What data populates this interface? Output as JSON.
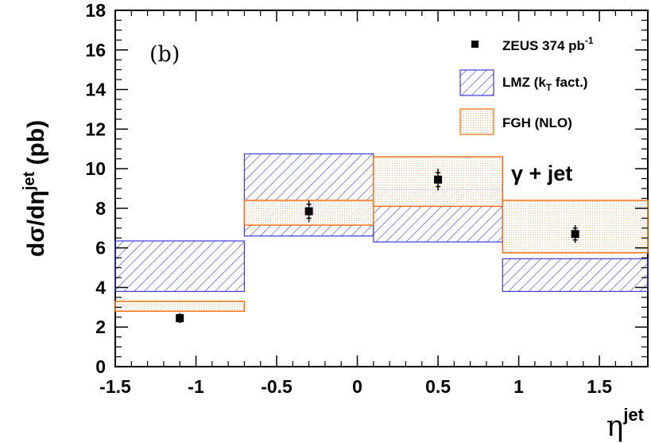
{
  "chart_data": {
    "type": "bar",
    "panel_label": "(b)",
    "annotation": "γ + jet",
    "xlabel": {
      "base": "η",
      "sup": "jet"
    },
    "ylabel": {
      "pre": "dσ/dη",
      "sup": "jet",
      "post": " (pb)"
    },
    "xlim": [
      -1.5,
      1.8
    ],
    "ylim": [
      0,
      18
    ],
    "x_ticks": [
      -1.5,
      -1,
      -0.5,
      0,
      0.5,
      1,
      1.5
    ],
    "x_tick_labels": [
      "-1.5",
      "-1",
      "-0.5",
      "0",
      "0.5",
      "1",
      "1.5"
    ],
    "y_ticks": [
      0,
      2,
      4,
      6,
      8,
      10,
      12,
      14,
      16,
      18
    ],
    "y_tick_labels": [
      "0",
      "2",
      "4",
      "6",
      "8",
      "10",
      "12",
      "14",
      "16",
      "18"
    ],
    "bins": [
      [
        -1.5,
        -0.7
      ],
      [
        -0.7,
        0.1
      ],
      [
        0.1,
        0.9
      ],
      [
        0.9,
        1.8
      ]
    ],
    "series": [
      {
        "name": "ZEUS 374 pb",
        "name_sup": "-1",
        "kind": "data_points",
        "x": [
          -1.1,
          -0.3,
          0.5,
          1.35
        ],
        "y": [
          2.45,
          7.85,
          9.45,
          6.7
        ],
        "stat_err": [
          0.18,
          0.35,
          0.35,
          0.3
        ],
        "total_err": [
          0.25,
          0.55,
          0.55,
          0.45
        ]
      },
      {
        "name": "LMZ (k",
        "name_sub": "T",
        "name_post": " fact.)",
        "kind": "band",
        "low": [
          3.8,
          6.6,
          6.3,
          3.8
        ],
        "high": [
          6.35,
          10.75,
          8.95,
          5.45
        ]
      },
      {
        "name": "FGH (NLO)",
        "kind": "band",
        "low": [
          2.8,
          7.15,
          8.1,
          5.75
        ],
        "high": [
          3.3,
          8.4,
          10.6,
          8.4
        ]
      }
    ],
    "colors": {
      "lmz": "#3b3bd6",
      "fgh": "#ff6600",
      "data": "#000000"
    },
    "legend_position": "top-right"
  }
}
